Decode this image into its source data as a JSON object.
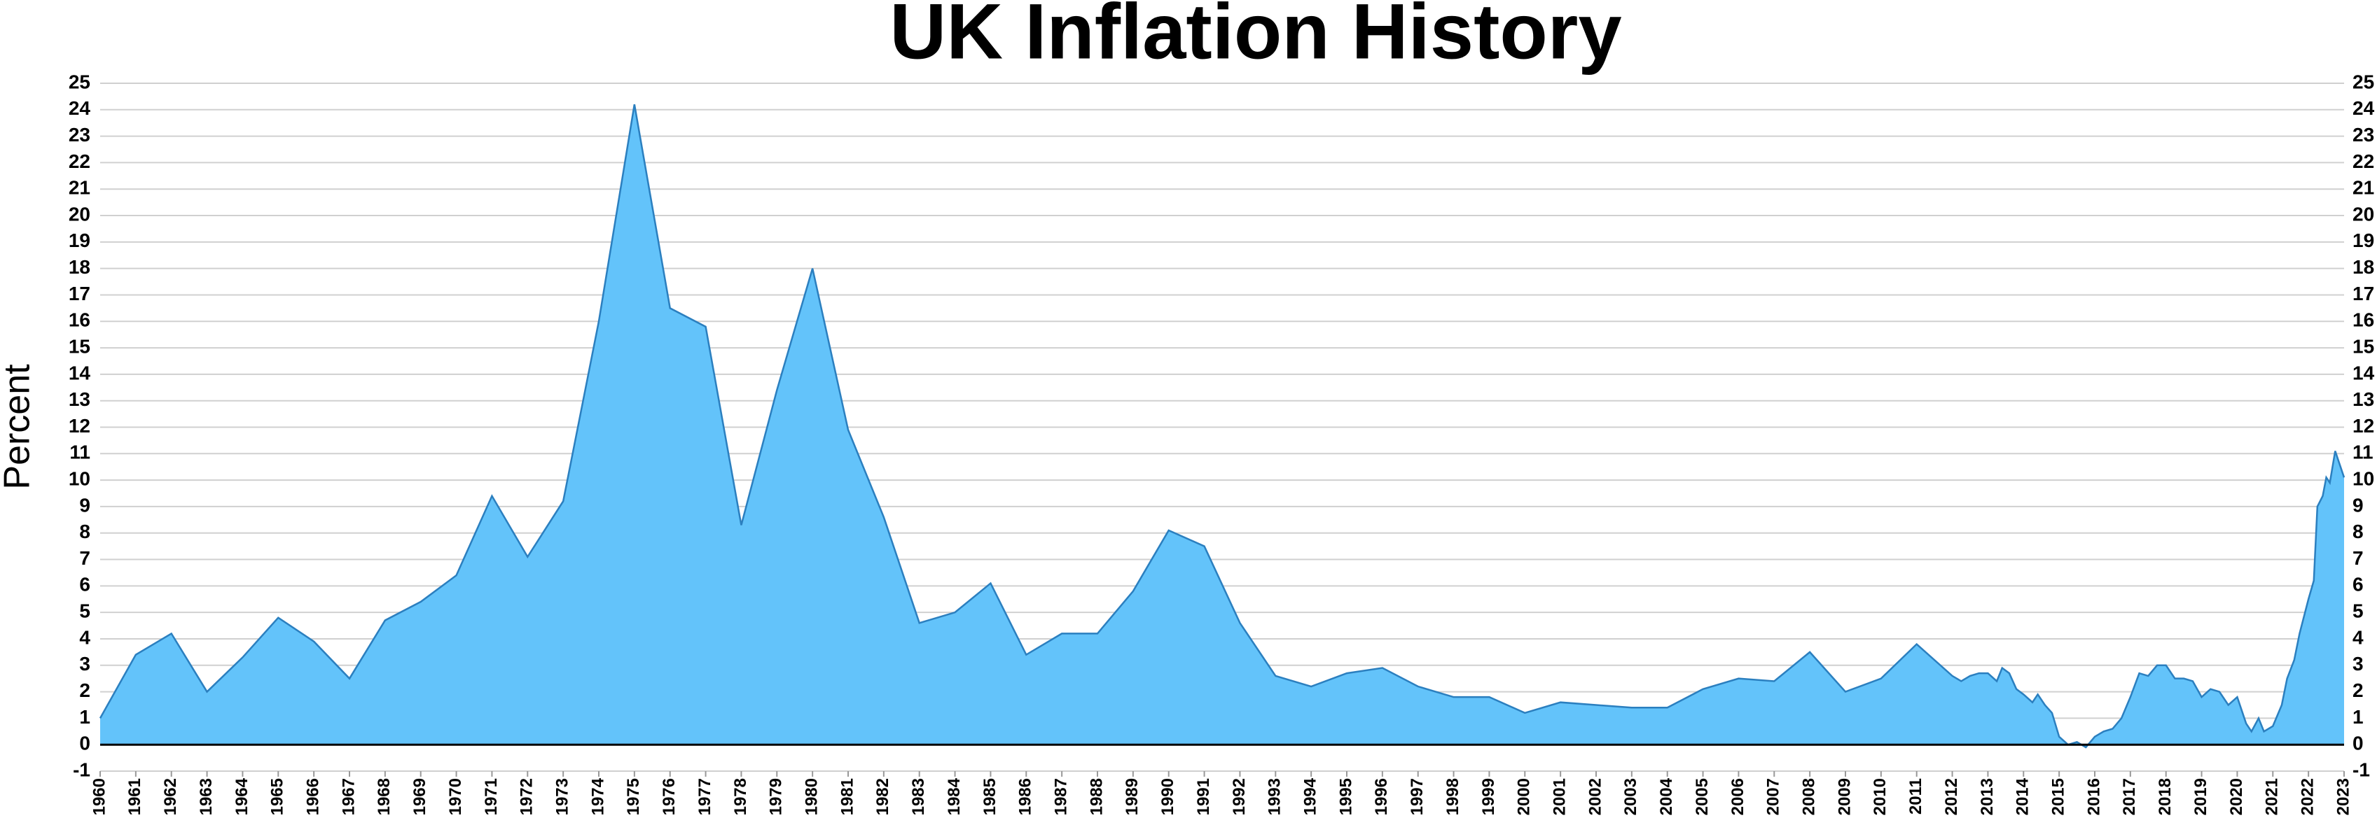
{
  "chart_data": {
    "type": "area",
    "title": "UK Inflation History",
    "y_label": "Percent",
    "color": "#63c3fa",
    "line_color": "#2b7fbf",
    "grid": true,
    "right_axis": true,
    "x": [
      1960,
      1961,
      1962,
      1963,
      1964,
      1965,
      1966,
      1967,
      1968,
      1969,
      1970,
      1971,
      1972,
      1973,
      1974,
      1975,
      1976,
      1977,
      1978,
      1979,
      1980,
      1981,
      1982,
      1983,
      1984,
      1985,
      1986,
      1987,
      1988,
      1989,
      1990,
      1991,
      1992,
      1993,
      1994,
      1995,
      1996,
      1997,
      1998,
      1999,
      2000,
      2001,
      2002,
      2003,
      2004,
      2005,
      2006,
      2007,
      2008,
      2009,
      2010,
      2011,
      2012,
      2012.25,
      2012.5,
      2012.75,
      2013,
      2013.25,
      2013.4,
      2013.6,
      2013.8,
      2014,
      2014.25,
      2014.4,
      2014.6,
      2014.8,
      2015,
      2015.25,
      2015.5,
      2015.75,
      2016,
      2016.25,
      2016.5,
      2016.75,
      2017,
      2017.25,
      2017.5,
      2017.75,
      2018,
      2018.25,
      2018.5,
      2018.75,
      2019,
      2019.25,
      2019.5,
      2019.75,
      2020,
      2020.25,
      2020.4,
      2020.6,
      2020.75,
      2021,
      2021.25,
      2021.4,
      2021.6,
      2021.75,
      2022,
      2022.15,
      2022.25,
      2022.4,
      2022.5,
      2022.6,
      2022.75,
      2022.9,
      2023
    ],
    "values": [
      1.0,
      3.4,
      4.2,
      2.0,
      3.3,
      4.8,
      3.9,
      2.5,
      4.7,
      5.4,
      6.4,
      9.4,
      7.1,
      9.2,
      16.0,
      24.2,
      16.5,
      15.8,
      8.3,
      13.4,
      18.0,
      11.9,
      8.6,
      4.6,
      5.0,
      6.1,
      3.4,
      4.2,
      4.2,
      5.8,
      8.1,
      7.5,
      4.6,
      2.6,
      2.2,
      2.7,
      2.9,
      2.2,
      1.8,
      1.8,
      1.2,
      1.6,
      1.5,
      1.4,
      1.4,
      2.1,
      2.5,
      2.4,
      3.5,
      2.0,
      2.5,
      3.8,
      2.6,
      2.4,
      2.6,
      2.7,
      2.7,
      2.4,
      2.9,
      2.7,
      2.1,
      1.9,
      1.6,
      1.9,
      1.5,
      1.2,
      0.3,
      0.0,
      0.1,
      -0.1,
      0.3,
      0.5,
      0.6,
      1.0,
      1.8,
      2.7,
      2.6,
      3.0,
      3.0,
      2.5,
      2.5,
      2.4,
      1.8,
      2.1,
      2.0,
      1.5,
      1.8,
      0.8,
      0.5,
      1.0,
      0.5,
      0.7,
      1.5,
      2.5,
      3.2,
      4.2,
      5.5,
      6.2,
      9.0,
      9.4,
      10.1,
      9.9,
      11.1,
      10.5,
      10.1
    ],
    "xlim": [
      1960,
      2023
    ],
    "xticks": [
      1960,
      1961,
      1962,
      1963,
      1964,
      1965,
      1966,
      1967,
      1968,
      1969,
      1970,
      1971,
      1972,
      1973,
      1974,
      1975,
      1976,
      1977,
      1978,
      1979,
      1980,
      1981,
      1982,
      1983,
      1984,
      1985,
      1986,
      1987,
      1988,
      1989,
      1990,
      1991,
      1992,
      1993,
      1994,
      1995,
      1996,
      1997,
      1998,
      1999,
      2000,
      2001,
      2002,
      2003,
      2004,
      2005,
      2006,
      2007,
      2008,
      2009,
      2010,
      2011,
      2012,
      2013,
      2014,
      2015,
      2016,
      2017,
      2018,
      2019,
      2020,
      2021,
      2022,
      2023
    ],
    "ylim": [
      -1,
      25
    ],
    "yticks": [
      -1,
      0,
      1,
      2,
      3,
      4,
      5,
      6,
      7,
      8,
      9,
      10,
      11,
      12,
      13,
      14,
      15,
      16,
      17,
      18,
      19,
      20,
      21,
      22,
      23,
      24,
      25
    ]
  }
}
